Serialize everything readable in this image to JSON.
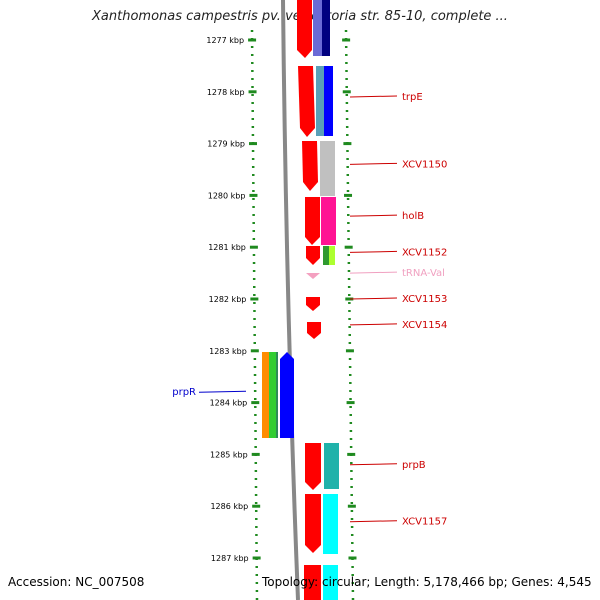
{
  "title": "Xanthomonas campestris pv. vesicatoria str. 85-10, complete ...",
  "footer": {
    "accession": "Accession: NC_007508",
    "summary": "Topology: circular; Length: 5,178,466 bp; Genes: 4,545"
  },
  "colors": {
    "tick": "#1f8a1f",
    "label_red": "#cc0000",
    "label_pink": "#f0a0c0",
    "label_blue": "#0000cc",
    "backbone": "#888888"
  },
  "scale": {
    "start_kbp": 1276.7,
    "end_kbp": 1287.8,
    "ticks": [
      {
        "kbp": 1277,
        "label": "1277 kbp"
      },
      {
        "kbp": 1278,
        "label": "1278 kbp"
      },
      {
        "kbp": 1279,
        "label": "1279 kbp"
      },
      {
        "kbp": 1280,
        "label": "1280 kbp"
      },
      {
        "kbp": 1281,
        "label": "1281 kbp"
      },
      {
        "kbp": 1282,
        "label": "1282 kbp"
      },
      {
        "kbp": 1283,
        "label": "1283 kbp"
      },
      {
        "kbp": 1284,
        "label": "1284 kbp"
      },
      {
        "kbp": 1285,
        "label": "1285 kbp"
      },
      {
        "kbp": 1286,
        "label": "1286 kbp"
      },
      {
        "kbp": 1287,
        "label": "1287 kbp"
      }
    ]
  },
  "gene_labels": [
    {
      "text": "trpE",
      "kbp": 1278.1,
      "color": "#cc0000"
    },
    {
      "text": "XCV1150",
      "kbp": 1279.4,
      "color": "#cc0000"
    },
    {
      "text": "holB",
      "kbp": 1280.4,
      "color": "#cc0000"
    },
    {
      "text": "XCV1152",
      "kbp": 1281.1,
      "color": "#cc0000"
    },
    {
      "text": "tRNA-Val",
      "kbp": 1281.5,
      "color": "#f0a0c0"
    },
    {
      "text": "XCV1153",
      "kbp": 1282.0,
      "color": "#cc0000"
    },
    {
      "text": "XCV1154",
      "kbp": 1282.5,
      "color": "#cc0000"
    },
    {
      "text": "prpR",
      "kbp": 1283.8,
      "color": "#0000cc"
    },
    {
      "text": "prpB",
      "kbp": 1285.2,
      "color": "#cc0000"
    },
    {
      "text": "XCV1157",
      "kbp": 1286.3,
      "color": "#cc0000"
    }
  ]
}
